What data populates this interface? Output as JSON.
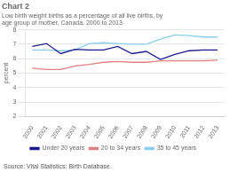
{
  "chart_data": {
    "type": "line",
    "title": "Chart 2",
    "subtitle": [
      "Low birth weight births as a percentage of all live births, by",
      "age group of mother, Canada, 2000 to 2013"
    ],
    "ylabel": "percent",
    "annotations": [
      "Source: Vital Statistics: Birth Database."
    ],
    "x": [
      2000,
      2001,
      2002,
      2003,
      2004,
      2005,
      2006,
      2007,
      2008,
      2009,
      2010,
      2011,
      2012,
      2013
    ],
    "series": [
      {
        "name": "Under 20 years",
        "color": "#1a1a8c",
        "values": [
          6.85,
          7.05,
          6.35,
          6.65,
          6.6,
          6.6,
          6.85,
          6.35,
          6.5,
          5.95,
          6.3,
          6.55,
          6.6,
          6.6
        ]
      },
      {
        "name": "20 to 34 years",
        "color": "#e08080",
        "values": [
          5.35,
          5.25,
          5.25,
          5.5,
          5.6,
          5.75,
          5.8,
          5.75,
          5.75,
          5.85,
          5.85,
          5.85,
          5.85,
          5.9
        ]
      },
      {
        "name": "35 to 45 years",
        "color": "#87ceeb",
        "values": [
          6.6,
          6.6,
          6.55,
          6.6,
          7.05,
          7.1,
          7.05,
          7.0,
          7.0,
          7.35,
          7.65,
          7.6,
          7.5,
          7.5
        ]
      }
    ],
    "xlim": [
      1999.5,
      2013.5
    ],
    "xticks": [
      2000,
      2001,
      2002,
      2003,
      2004,
      2005,
      2006,
      2007,
      2008,
      2009,
      2010,
      2011,
      2012,
      2013
    ],
    "ylim": [
      2,
      8
    ],
    "yticks": [
      2,
      3,
      4,
      5,
      6,
      7,
      8
    ],
    "grid": "y",
    "legend": "bottom"
  }
}
